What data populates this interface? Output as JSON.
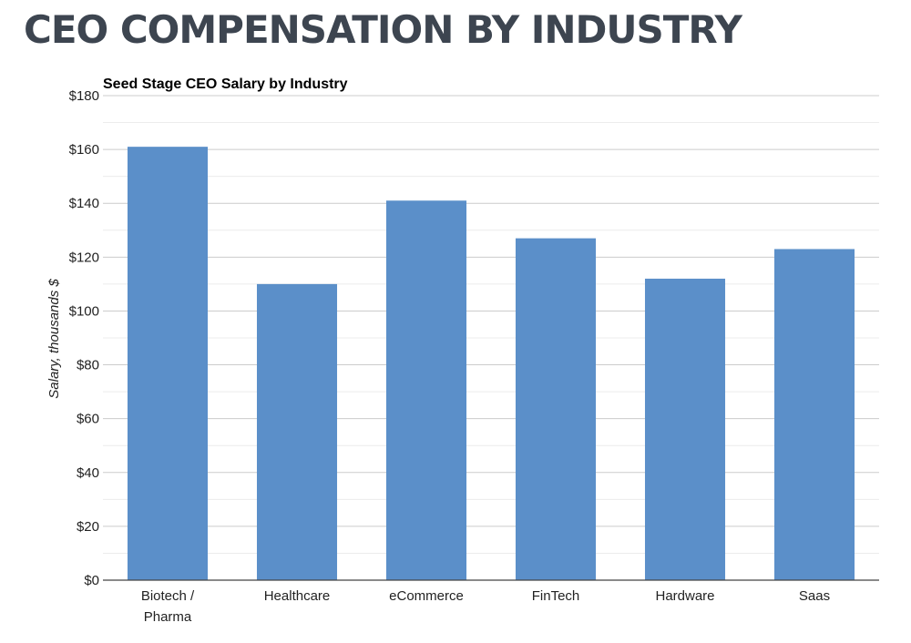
{
  "slide": {
    "title": "CEO COMPENSATION BY INDUSTRY"
  },
  "colors": {
    "bar": "#5b8fc9",
    "grid": "#cccccc",
    "minor_grid": "#ececec",
    "axis": "#444444",
    "title_text": "#3d4550"
  },
  "chart_data": {
    "type": "bar",
    "title": "Seed Stage CEO Salary by Industry",
    "xlabel": "",
    "ylabel": "Salary, thousands $",
    "categories": [
      "Biotech / Pharma",
      "Healthcare",
      "eCommerce",
      "FinTech",
      "Hardware",
      "Saas"
    ],
    "category_lines": [
      [
        "Biotech /",
        "Pharma"
      ],
      [
        "Healthcare"
      ],
      [
        "eCommerce"
      ],
      [
        "FinTech"
      ],
      [
        "Hardware"
      ],
      [
        "Saas"
      ]
    ],
    "values": [
      161,
      110,
      141,
      127,
      112,
      123
    ],
    "ylim": [
      0,
      180
    ],
    "yticks": [
      0,
      20,
      40,
      60,
      80,
      100,
      120,
      140,
      160,
      180
    ],
    "ytick_labels": [
      "$0",
      "$20",
      "$40",
      "$60",
      "$80",
      "$100",
      "$120",
      "$140",
      "$160",
      "$180"
    ],
    "grid": true,
    "legend": "none"
  }
}
